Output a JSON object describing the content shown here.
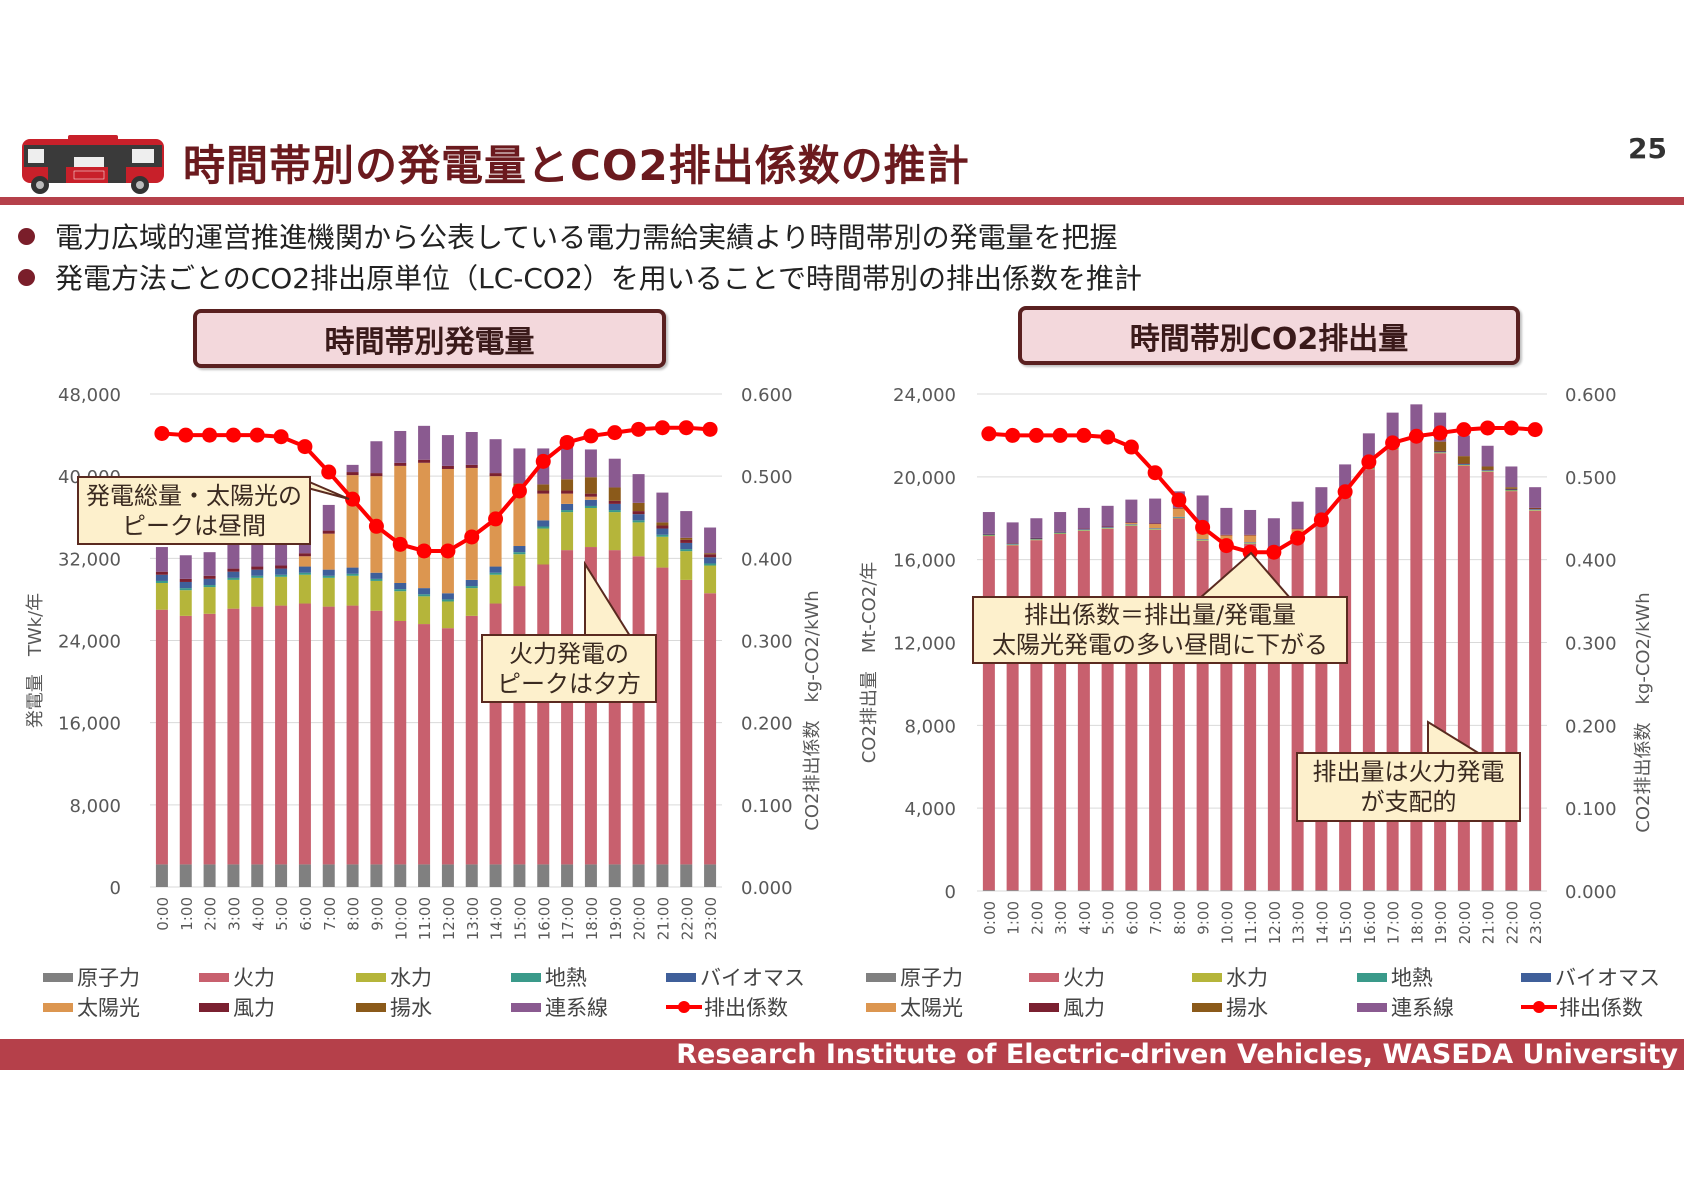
{
  "header": {
    "title": "時間帯別の発電量とCO2排出係数の推計",
    "page_number": "25",
    "logo": "electric-bus-illustration"
  },
  "bullets": [
    "電力広域的運営推進機関から公表している電力需給実績より時間帯別の発電量を把握",
    "発電方法ごとのCO2排出原単位（LC-CO2）を用いることで時間帯別の排出係数を推計"
  ],
  "panels": {
    "left_title": "時間帯別発電量",
    "right_title": "時間帯別CO2排出量"
  },
  "callouts": {
    "left_peak": [
      "発電総量・太陽光の",
      "ピークは昼間"
    ],
    "left_thermal": [
      "火力発電の",
      "ピークは夕方"
    ],
    "right_factor": [
      "排出係数＝排出量/発電量",
      "太陽光発電の多い昼間に下がる"
    ],
    "right_thermal": [
      "排出量は火力発電",
      "が支配的"
    ]
  },
  "footer": "Research Institute of Electric-driven Vehicles, WASEDA University",
  "colors": {
    "原子力": "#808080",
    "火力": "#c8606e",
    "水力": "#b5b53a",
    "地熱": "#3a9a8a",
    "バイオマス": "#3f5f9a",
    "太陽光": "#dc9650",
    "風力": "#7a2030",
    "揚水": "#8b5a1a",
    "連系線": "#8a5a90",
    "排出係数": "#ff0000",
    "accent": "#b5404a",
    "title": "#6b1a1e"
  },
  "chart_data": [
    {
      "type": "bar",
      "stacked": true,
      "categories": [
        "0:00",
        "1:00",
        "2:00",
        "3:00",
        "4:00",
        "5:00",
        "6:00",
        "7:00",
        "8:00",
        "9:00",
        "10:00",
        "11:00",
        "12:00",
        "13:00",
        "14:00",
        "15:00",
        "16:00",
        "17:00",
        "18:00",
        "19:00",
        "20:00",
        "21:00",
        "22:00",
        "23:00"
      ],
      "ylabel": "発電量　TWk/年",
      "y2label": "CO2排出係数　kg-CO2/kWh",
      "ylim": [
        0,
        48000
      ],
      "y2lim": [
        0,
        0.6
      ],
      "yticks": [
        "0",
        "8,000",
        "16,000",
        "24,000",
        "32,000",
        "40,000",
        "48,000"
      ],
      "y2ticks": [
        "0.000",
        "0.100",
        "0.200",
        "0.300",
        "0.400",
        "0.500",
        "0.600"
      ],
      "grid": true,
      "legend_position": "bottom",
      "series": [
        {
          "name": "原子力",
          "values": [
            2200,
            2200,
            2200,
            2200,
            2200,
            2200,
            2200,
            2200,
            2200,
            2200,
            2200,
            2200,
            2200,
            2200,
            2200,
            2200,
            2200,
            2200,
            2200,
            2200,
            2200,
            2200,
            2200,
            2200
          ]
        },
        {
          "name": "火力",
          "values": [
            24800,
            24200,
            24400,
            24900,
            25100,
            25200,
            25400,
            25100,
            25200,
            24700,
            23700,
            23400,
            23000,
            24200,
            25400,
            27100,
            29200,
            30600,
            30900,
            30600,
            30000,
            28900,
            27700,
            26400
          ]
        },
        {
          "name": "水力",
          "values": [
            2600,
            2500,
            2600,
            2800,
            2800,
            2800,
            2800,
            2800,
            2900,
            2900,
            2900,
            2700,
            2600,
            2700,
            2800,
            3100,
            3500,
            3700,
            3800,
            3700,
            3300,
            3000,
            2800,
            2700
          ]
        },
        {
          "name": "地熱",
          "values": [
            200,
            200,
            200,
            200,
            200,
            200,
            200,
            200,
            200,
            200,
            200,
            200,
            200,
            200,
            200,
            200,
            200,
            200,
            200,
            200,
            200,
            200,
            200,
            200
          ]
        },
        {
          "name": "バイオマス",
          "values": [
            600,
            600,
            600,
            600,
            600,
            600,
            600,
            600,
            600,
            600,
            600,
            600,
            600,
            600,
            600,
            600,
            600,
            600,
            600,
            600,
            600,
            600,
            600,
            600
          ]
        },
        {
          "name": "太陽光",
          "values": [
            0,
            0,
            0,
            0,
            0,
            0,
            1000,
            3500,
            9000,
            9400,
            11400,
            12200,
            12100,
            10900,
            8800,
            5500,
            2600,
            1000,
            300,
            0,
            0,
            0,
            0,
            0
          ]
        },
        {
          "name": "風力",
          "values": [
            300,
            300,
            300,
            300,
            300,
            300,
            300,
            300,
            300,
            300,
            300,
            300,
            300,
            300,
            300,
            300,
            300,
            300,
            300,
            300,
            300,
            300,
            300,
            300
          ]
        },
        {
          "name": "揚水",
          "values": [
            0,
            0,
            0,
            0,
            0,
            0,
            0,
            0,
            0,
            0,
            0,
            0,
            0,
            0,
            0,
            300,
            600,
            1100,
            1600,
            1300,
            800,
            300,
            200,
            100
          ]
        },
        {
          "name": "連系線",
          "values": [
            2400,
            2300,
            2300,
            2400,
            2500,
            2300,
            2300,
            2500,
            700,
            3100,
            3100,
            3300,
            3000,
            3200,
            3300,
            3400,
            3500,
            4100,
            2700,
            2800,
            2800,
            2900,
            2600,
            2500
          ]
        }
      ],
      "line_series": {
        "name": "排出係数",
        "axis": "right",
        "values": [
          0.552,
          0.55,
          0.55,
          0.55,
          0.55,
          0.548,
          0.536,
          0.505,
          0.472,
          0.439,
          0.417,
          0.409,
          0.409,
          0.426,
          0.448,
          0.482,
          0.518,
          0.541,
          0.549,
          0.553,
          0.557,
          0.559,
          0.559,
          0.557
        ]
      }
    },
    {
      "type": "bar",
      "stacked": true,
      "categories": [
        "0:00",
        "1:00",
        "2:00",
        "3:00",
        "4:00",
        "5:00",
        "6:00",
        "7:00",
        "8:00",
        "9:00",
        "10:00",
        "11:00",
        "12:00",
        "13:00",
        "14:00",
        "15:00",
        "16:00",
        "17:00",
        "18:00",
        "19:00",
        "20:00",
        "21:00",
        "22:00",
        "23:00"
      ],
      "ylabel": "CO2排出量　Mt-CO2/年",
      "y2label": "CO2排出係数　kg-CO2/kWh",
      "ylim": [
        0,
        24000
      ],
      "y2lim": [
        0,
        0.6
      ],
      "yticks": [
        "0",
        "4,000",
        "8,000",
        "12,000",
        "16,000",
        "20,000",
        "24,000"
      ],
      "y2ticks": [
        "0.000",
        "0.100",
        "0.200",
        "0.300",
        "0.400",
        "0.500",
        "0.600"
      ],
      "grid": true,
      "legend_position": "bottom",
      "series": [
        {
          "name": "原子力",
          "values": [
            40,
            40,
            40,
            40,
            40,
            40,
            40,
            40,
            40,
            40,
            40,
            40,
            40,
            40,
            40,
            40,
            40,
            40,
            40,
            40,
            40,
            40,
            40,
            40
          ]
        },
        {
          "name": "火力",
          "values": [
            17100,
            16650,
            16900,
            17200,
            17350,
            17450,
            17590,
            17400,
            17950,
            16870,
            16800,
            16720,
            16100,
            17150,
            17900,
            18920,
            20330,
            21280,
            21750,
            21100,
            20500,
            20200,
            19270,
            18320
          ]
        },
        {
          "name": "水力",
          "values": [
            30,
            30,
            30,
            30,
            30,
            30,
            30,
            30,
            30,
            30,
            30,
            30,
            30,
            30,
            30,
            30,
            30,
            30,
            30,
            30,
            30,
            30,
            30,
            30
          ]
        },
        {
          "name": "地熱",
          "values": [
            20,
            20,
            20,
            20,
            20,
            20,
            20,
            20,
            20,
            20,
            20,
            20,
            20,
            20,
            20,
            20,
            20,
            20,
            20,
            20,
            20,
            20,
            20,
            20
          ]
        },
        {
          "name": "バイオマス",
          "values": [
            30,
            30,
            30,
            30,
            30,
            30,
            30,
            30,
            30,
            30,
            30,
            30,
            30,
            30,
            30,
            30,
            30,
            30,
            30,
            30,
            30,
            30,
            30,
            30
          ]
        },
        {
          "name": "太陽光",
          "values": [
            0,
            0,
            0,
            0,
            0,
            0,
            60,
            200,
            400,
            280,
            250,
            330,
            250,
            200,
            150,
            100,
            60,
            20,
            0,
            0,
            0,
            0,
            0,
            0
          ]
        },
        {
          "name": "風力",
          "values": [
            30,
            30,
            30,
            30,
            30,
            30,
            30,
            30,
            30,
            30,
            30,
            30,
            30,
            30,
            30,
            30,
            30,
            30,
            30,
            30,
            30,
            30,
            30,
            30
          ]
        },
        {
          "name": "揚水",
          "values": [
            0,
            0,
            0,
            0,
            0,
            0,
            0,
            0,
            0,
            0,
            0,
            0,
            0,
            0,
            0,
            30,
            60,
            150,
            300,
            450,
            350,
            150,
            80,
            30
          ]
        },
        {
          "name": "連系線",
          "values": [
            1050,
            1000,
            950,
            950,
            1000,
            1000,
            1100,
            1200,
            800,
            1800,
            1300,
            1200,
            1500,
            1300,
            1300,
            1400,
            1500,
            1500,
            1300,
            1400,
            1000,
            1000,
            1000,
            1000
          ]
        }
      ],
      "line_series": {
        "name": "排出係数",
        "axis": "right",
        "values": [
          0.552,
          0.55,
          0.55,
          0.55,
          0.55,
          0.548,
          0.536,
          0.505,
          0.472,
          0.439,
          0.417,
          0.409,
          0.409,
          0.426,
          0.448,
          0.482,
          0.518,
          0.541,
          0.549,
          0.553,
          0.557,
          0.559,
          0.559,
          0.557
        ]
      }
    }
  ]
}
